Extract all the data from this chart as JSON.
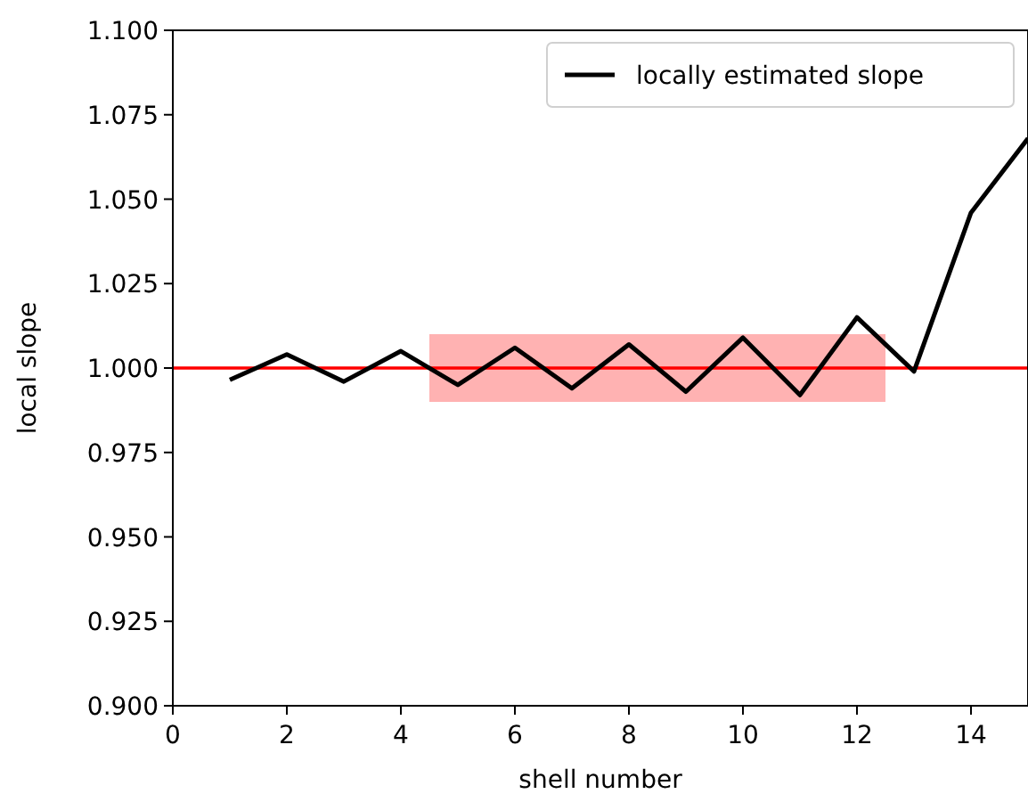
{
  "chart_data": {
    "type": "line",
    "xlabel": "shell number",
    "ylabel": "local slope",
    "x": [
      1,
      2,
      3,
      4,
      5,
      6,
      7,
      8,
      9,
      10,
      11,
      12,
      13,
      14,
      15
    ],
    "series": [
      {
        "type": "line",
        "color": "#ff0000",
        "x": [
          0,
          4.5,
          12.5,
          15
        ],
        "values": [
          1,
          1,
          1,
          1
        ],
        "lower": [
          null,
          0.99,
          0.99,
          null
        ],
        "upper": [
          null,
          1.01,
          1.01,
          null
        ]
      },
      {
        "name": "locally estimated slope",
        "color": "#000000",
        "values": [
          0.9965,
          1.004,
          0.996,
          1.005,
          0.995,
          1.006,
          0.994,
          1.007,
          0.993,
          1.009,
          0.992,
          1.015,
          0.999,
          1.046,
          1.068
        ]
      }
    ],
    "xlim": [
      0,
      15
    ],
    "xticks": [
      0,
      2,
      4,
      6,
      8,
      10,
      12,
      14
    ],
    "ylim": [
      0.9,
      1.1
    ],
    "yticks": [
      {
        "value": 0.9,
        "label": "0.900"
      },
      {
        "value": 0.925,
        "label": "0.925"
      },
      {
        "value": 0.95,
        "label": "0.950"
      },
      {
        "value": 0.975,
        "label": "0.975"
      },
      {
        "value": 1.0,
        "label": "1.000"
      },
      {
        "value": 1.025,
        "label": "1.025"
      },
      {
        "value": 1.05,
        "label": "1.050"
      },
      {
        "value": 1.075,
        "label": "1.075"
      },
      {
        "value": 1.1,
        "label": "1.100"
      }
    ],
    "legend": "top right",
    "line_style": "solid",
    "marker": "none",
    "grid": false
  }
}
